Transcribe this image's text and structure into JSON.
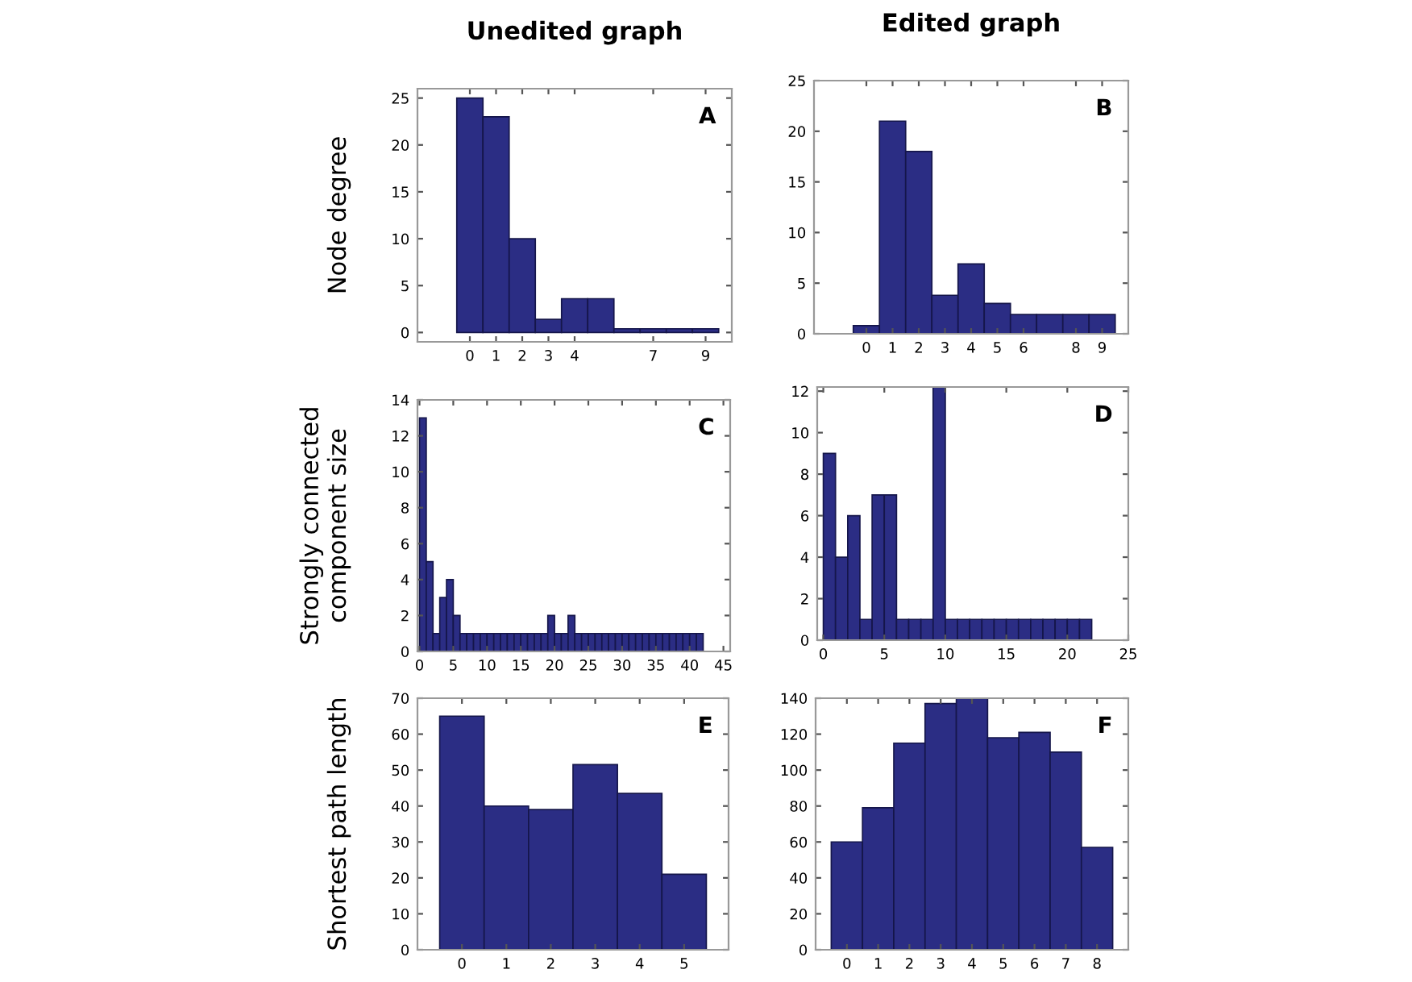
{
  "chart_data": [
    {
      "type": "histogram",
      "title": "Unedited graph",
      "ylabel": "Node degree",
      "annotations": [
        "A"
      ],
      "color": "#2b2d84",
      "bins": [
        -0.5,
        0.5,
        1.5,
        2.5,
        3.5,
        4.5,
        5.5,
        6.5,
        7.5,
        8.5,
        9.5
      ],
      "values": [
        25,
        23,
        10,
        1.4,
        3.6,
        3.6,
        0.4,
        0.4,
        0.4,
        0.4
      ],
      "xlim": [
        -2,
        10
      ],
      "xticks": [
        0,
        1,
        2,
        3,
        4,
        7,
        9
      ],
      "ylim": [
        -1,
        26
      ],
      "yticks": [
        0,
        5,
        10,
        15,
        20,
        25
      ],
      "grid": false
    },
    {
      "type": "histogram",
      "title": "Edited graph",
      "annotations": [
        "B"
      ],
      "color": "#2b2d84",
      "bins": [
        -0.5,
        0.5,
        1.5,
        2.5,
        3.5,
        4.5,
        5.5,
        6.5,
        7.5,
        8.5,
        9.5
      ],
      "values": [
        0.8,
        21,
        18,
        3.8,
        6.9,
        3,
        1.9,
        1.9,
        1.9,
        1.9
      ],
      "xlim": [
        -2,
        10
      ],
      "xticks": [
        0,
        1,
        2,
        3,
        4,
        5,
        6,
        8,
        9
      ],
      "ylim": [
        0,
        25
      ],
      "yticks": [
        0,
        5,
        10,
        15,
        20,
        25
      ],
      "grid": false
    },
    {
      "type": "histogram",
      "ylabel": "Strongly connected\ncomponent size",
      "annotations": [
        "C"
      ],
      "color": "#2b2d84",
      "bins": [
        0,
        1,
        2,
        3,
        4,
        5,
        6,
        7,
        8,
        9,
        10,
        11,
        12,
        13,
        14,
        15,
        16,
        17,
        18,
        19,
        20,
        21,
        22,
        23,
        24,
        25,
        26,
        27,
        28,
        29,
        30,
        31,
        32,
        33,
        34,
        35,
        36,
        37,
        38,
        39,
        40,
        41,
        42
      ],
      "values": [
        13,
        5,
        1,
        3,
        4,
        2,
        1,
        1,
        1,
        1,
        1,
        1,
        1,
        1,
        1,
        1,
        1,
        1,
        1,
        2,
        1,
        1,
        2,
        1,
        1,
        1,
        1,
        1,
        1,
        1,
        1,
        1,
        1,
        1,
        1,
        1,
        1,
        1,
        1,
        1,
        1,
        1
      ],
      "xlim": [
        -0.3,
        46
      ],
      "xticks": [
        0,
        5,
        10,
        15,
        20,
        25,
        30,
        35,
        40,
        45
      ],
      "ylim": [
        0,
        14
      ],
      "yticks": [
        0,
        2,
        4,
        6,
        8,
        10,
        12,
        14
      ],
      "grid": false
    },
    {
      "type": "histogram",
      "annotations": [
        "D"
      ],
      "color": "#2b2d84",
      "bins": [
        0,
        1,
        2,
        3,
        4,
        5,
        6,
        7,
        8,
        9,
        10,
        11,
        12,
        13,
        14,
        15,
        16,
        17,
        18,
        19,
        20,
        21,
        22
      ],
      "values": [
        9,
        4,
        6,
        1,
        7,
        7,
        1,
        1,
        1,
        12.2,
        1,
        1,
        1,
        1,
        1,
        1,
        1,
        1,
        1,
        1,
        1,
        1
      ],
      "xlim": [
        -0.5,
        25
      ],
      "xticks": [
        0,
        5,
        10,
        15,
        20,
        25
      ],
      "ylim": [
        0,
        12.2
      ],
      "yticks": [
        0,
        2,
        4,
        6,
        8,
        10,
        12
      ],
      "grid": false
    },
    {
      "type": "histogram",
      "ylabel": "Shortest path length",
      "annotations": [
        "E"
      ],
      "color": "#2b2d84",
      "bins": [
        -0.5,
        0.5,
        1.5,
        2.5,
        3.5,
        4.5,
        5.5
      ],
      "values": [
        65,
        40,
        39,
        51.5,
        43.5,
        21
      ],
      "xlim": [
        -1,
        6
      ],
      "xticks": [
        0,
        1,
        2,
        3,
        4,
        5
      ],
      "ylim": [
        0,
        70
      ],
      "yticks": [
        0,
        10,
        20,
        30,
        40,
        50,
        60,
        70
      ],
      "grid": false
    },
    {
      "type": "histogram",
      "annotations": [
        "F"
      ],
      "color": "#2b2d84",
      "bins": [
        -0.5,
        0.5,
        1.5,
        2.5,
        3.5,
        4.5,
        5.5,
        6.5,
        7.5,
        8.5
      ],
      "values": [
        60,
        79,
        115,
        137,
        140,
        118,
        121,
        110,
        57
      ],
      "xlim": [
        -1,
        9
      ],
      "xticks": [
        0,
        1,
        2,
        3,
        4,
        5,
        6,
        7,
        8
      ],
      "ylim": [
        0,
        140
      ],
      "yticks": [
        0,
        20,
        40,
        60,
        80,
        100,
        120,
        140
      ],
      "grid": false
    }
  ]
}
